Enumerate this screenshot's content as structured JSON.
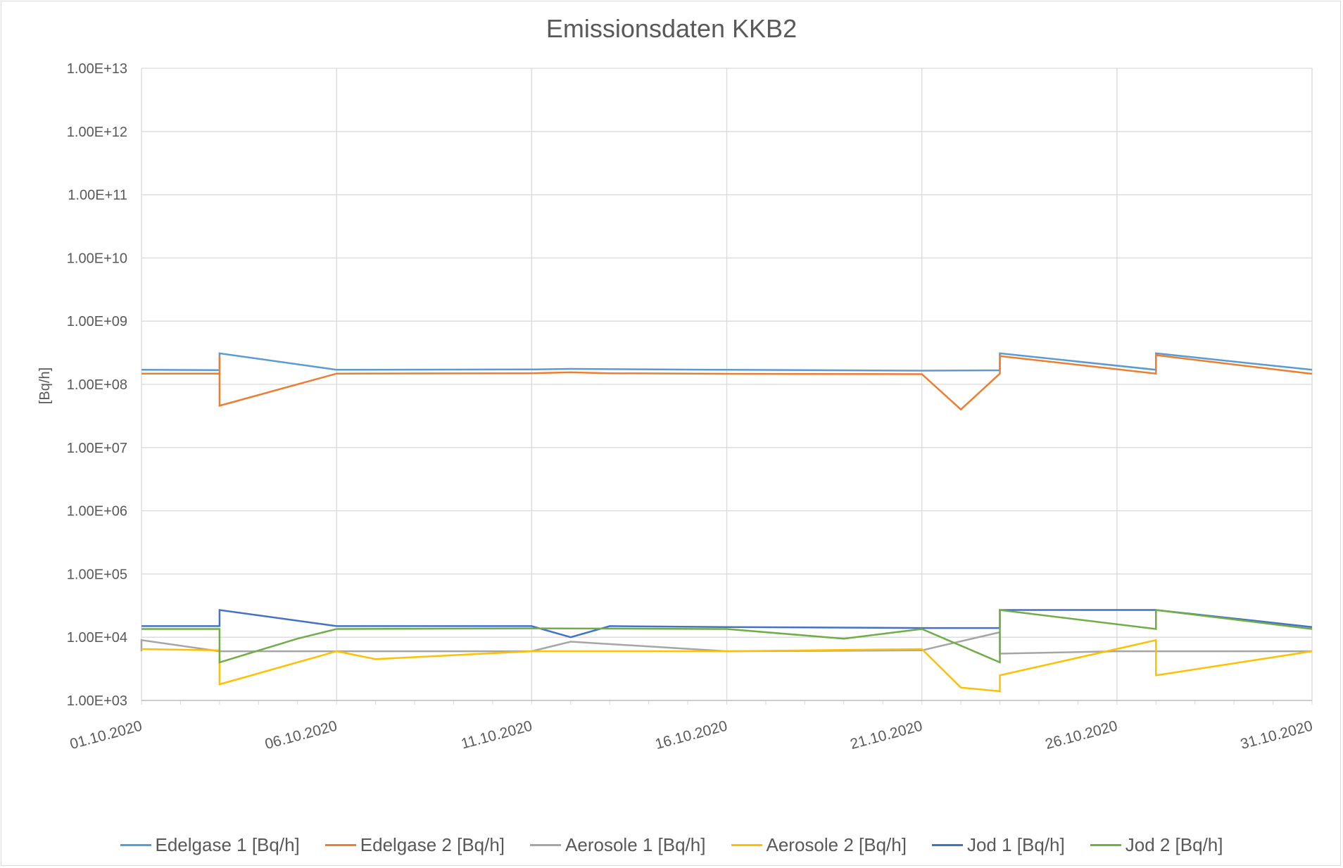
{
  "chart_data": {
    "type": "line",
    "title": "Emissionsdaten KKB2",
    "ylabel": "[Bq/h]",
    "xlabel": "",
    "y_scale": "log",
    "ylim": [
      1000,
      10000000000000
    ],
    "xlim": [
      "01.10.2020",
      "31.10.2020"
    ],
    "y_ticks": [
      "1.00E+03",
      "1.00E+04",
      "1.00E+05",
      "1.00E+06",
      "1.00E+07",
      "1.00E+08",
      "1.00E+09",
      "1.00E+10",
      "1.00E+11",
      "1.00E+12",
      "1.00E+13"
    ],
    "x_ticks": [
      "01.10.2020",
      "06.10.2020",
      "11.10.2020",
      "16.10.2020",
      "21.10.2020",
      "26.10.2020",
      "31.10.2020"
    ],
    "grid": true,
    "legend_position": "bottom",
    "series": [
      {
        "name": "Edelgase 1 [Bq/h]",
        "color": "#5b9bd5",
        "x": [
          "01.10.2020",
          "03.10.2020",
          "03.10.2020",
          "06.10.2020",
          "11.10.2020",
          "12.10.2020",
          "13.10.2020",
          "16.10.2020",
          "21.10.2020",
          "23.10.2020",
          "23.10.2020",
          "23.10.2020",
          "27.10.2020",
          "27.10.2020",
          "31.10.2020"
        ],
        "values": [
          170000000,
          168000000,
          310000000,
          170000000,
          172000000,
          176000000,
          174000000,
          170000000,
          165000000,
          167000000,
          310000000,
          310000000,
          170000000,
          310000000,
          170000000
        ]
      },
      {
        "name": "Edelgase 2 [Bq/h]",
        "color": "#ed7d31",
        "x": [
          "01.10.2020",
          "03.10.2020",
          "03.10.2020",
          "03.10.2020",
          "06.10.2020",
          "11.10.2020",
          "12.10.2020",
          "13.10.2020",
          "16.10.2020",
          "21.10.2020",
          "22.10.2020",
          "23.10.2020",
          "23.10.2020",
          "23.10.2020",
          "27.10.2020",
          "27.10.2020",
          "31.10.2020"
        ],
        "values": [
          148000000,
          148000000,
          280000000,
          46000000,
          148000000,
          150000000,
          155000000,
          150000000,
          147000000,
          145000000,
          40000000,
          148000000,
          280000000,
          280000000,
          148000000,
          290000000,
          147000000
        ]
      },
      {
        "name": "Aerosole 1 [Bq/h]",
        "color": "#a5a5a5",
        "x": [
          "01.10.2020",
          "01.10.2020",
          "03.10.2020",
          "06.10.2020",
          "11.10.2020",
          "12.10.2020",
          "16.10.2020",
          "21.10.2020",
          "23.10.2020",
          "23.10.2020",
          "26.10.2020",
          "31.10.2020"
        ],
        "values": [
          6000,
          9000,
          6000,
          6000,
          6000,
          8500,
          6000,
          6200,
          12000,
          5500,
          6000,
          6000
        ]
      },
      {
        "name": "Aerosole 2 [Bq/h]",
        "color": "#ffc000",
        "x": [
          "01.10.2020",
          "03.10.2020",
          "03.10.2020",
          "06.10.2020",
          "07.10.2020",
          "11.10.2020",
          "16.10.2020",
          "21.10.2020",
          "22.10.2020",
          "23.10.2020",
          "23.10.2020",
          "23.10.2020",
          "27.10.2020",
          "27.10.2020",
          "31.10.2020"
        ],
        "values": [
          6500,
          6200,
          1800,
          6000,
          4500,
          6000,
          6000,
          6500,
          1600,
          1400,
          2500,
          2500,
          9000,
          2500,
          6000
        ]
      },
      {
        "name": "Jod 1 [Bq/h]",
        "color": "#4472c4",
        "x": [
          "01.10.2020",
          "03.10.2020",
          "03.10.2020",
          "06.10.2020",
          "11.10.2020",
          "12.10.2020",
          "13.10.2020",
          "16.10.2020",
          "21.10.2020",
          "23.10.2020",
          "23.10.2020",
          "27.10.2020",
          "31.10.2020"
        ],
        "values": [
          15000,
          15000,
          27000,
          15000,
          15000,
          10000,
          15000,
          14500,
          14000,
          14000,
          27000,
          27000,
          14500
        ]
      },
      {
        "name": "Jod 2 [Bq/h]",
        "color": "#70ad47",
        "x": [
          "01.10.2020",
          "03.10.2020",
          "03.10.2020",
          "05.10.2020",
          "06.10.2020",
          "11.10.2020",
          "16.10.2020",
          "19.10.2020",
          "21.10.2020",
          "23.10.2020",
          "23.10.2020",
          "23.10.2020",
          "27.10.2020",
          "27.10.2020",
          "31.10.2020"
        ],
        "values": [
          13500,
          13500,
          4000,
          9500,
          13500,
          13800,
          13500,
          9500,
          13500,
          4000,
          27000,
          27000,
          13500,
          27000,
          13500
        ]
      }
    ]
  }
}
